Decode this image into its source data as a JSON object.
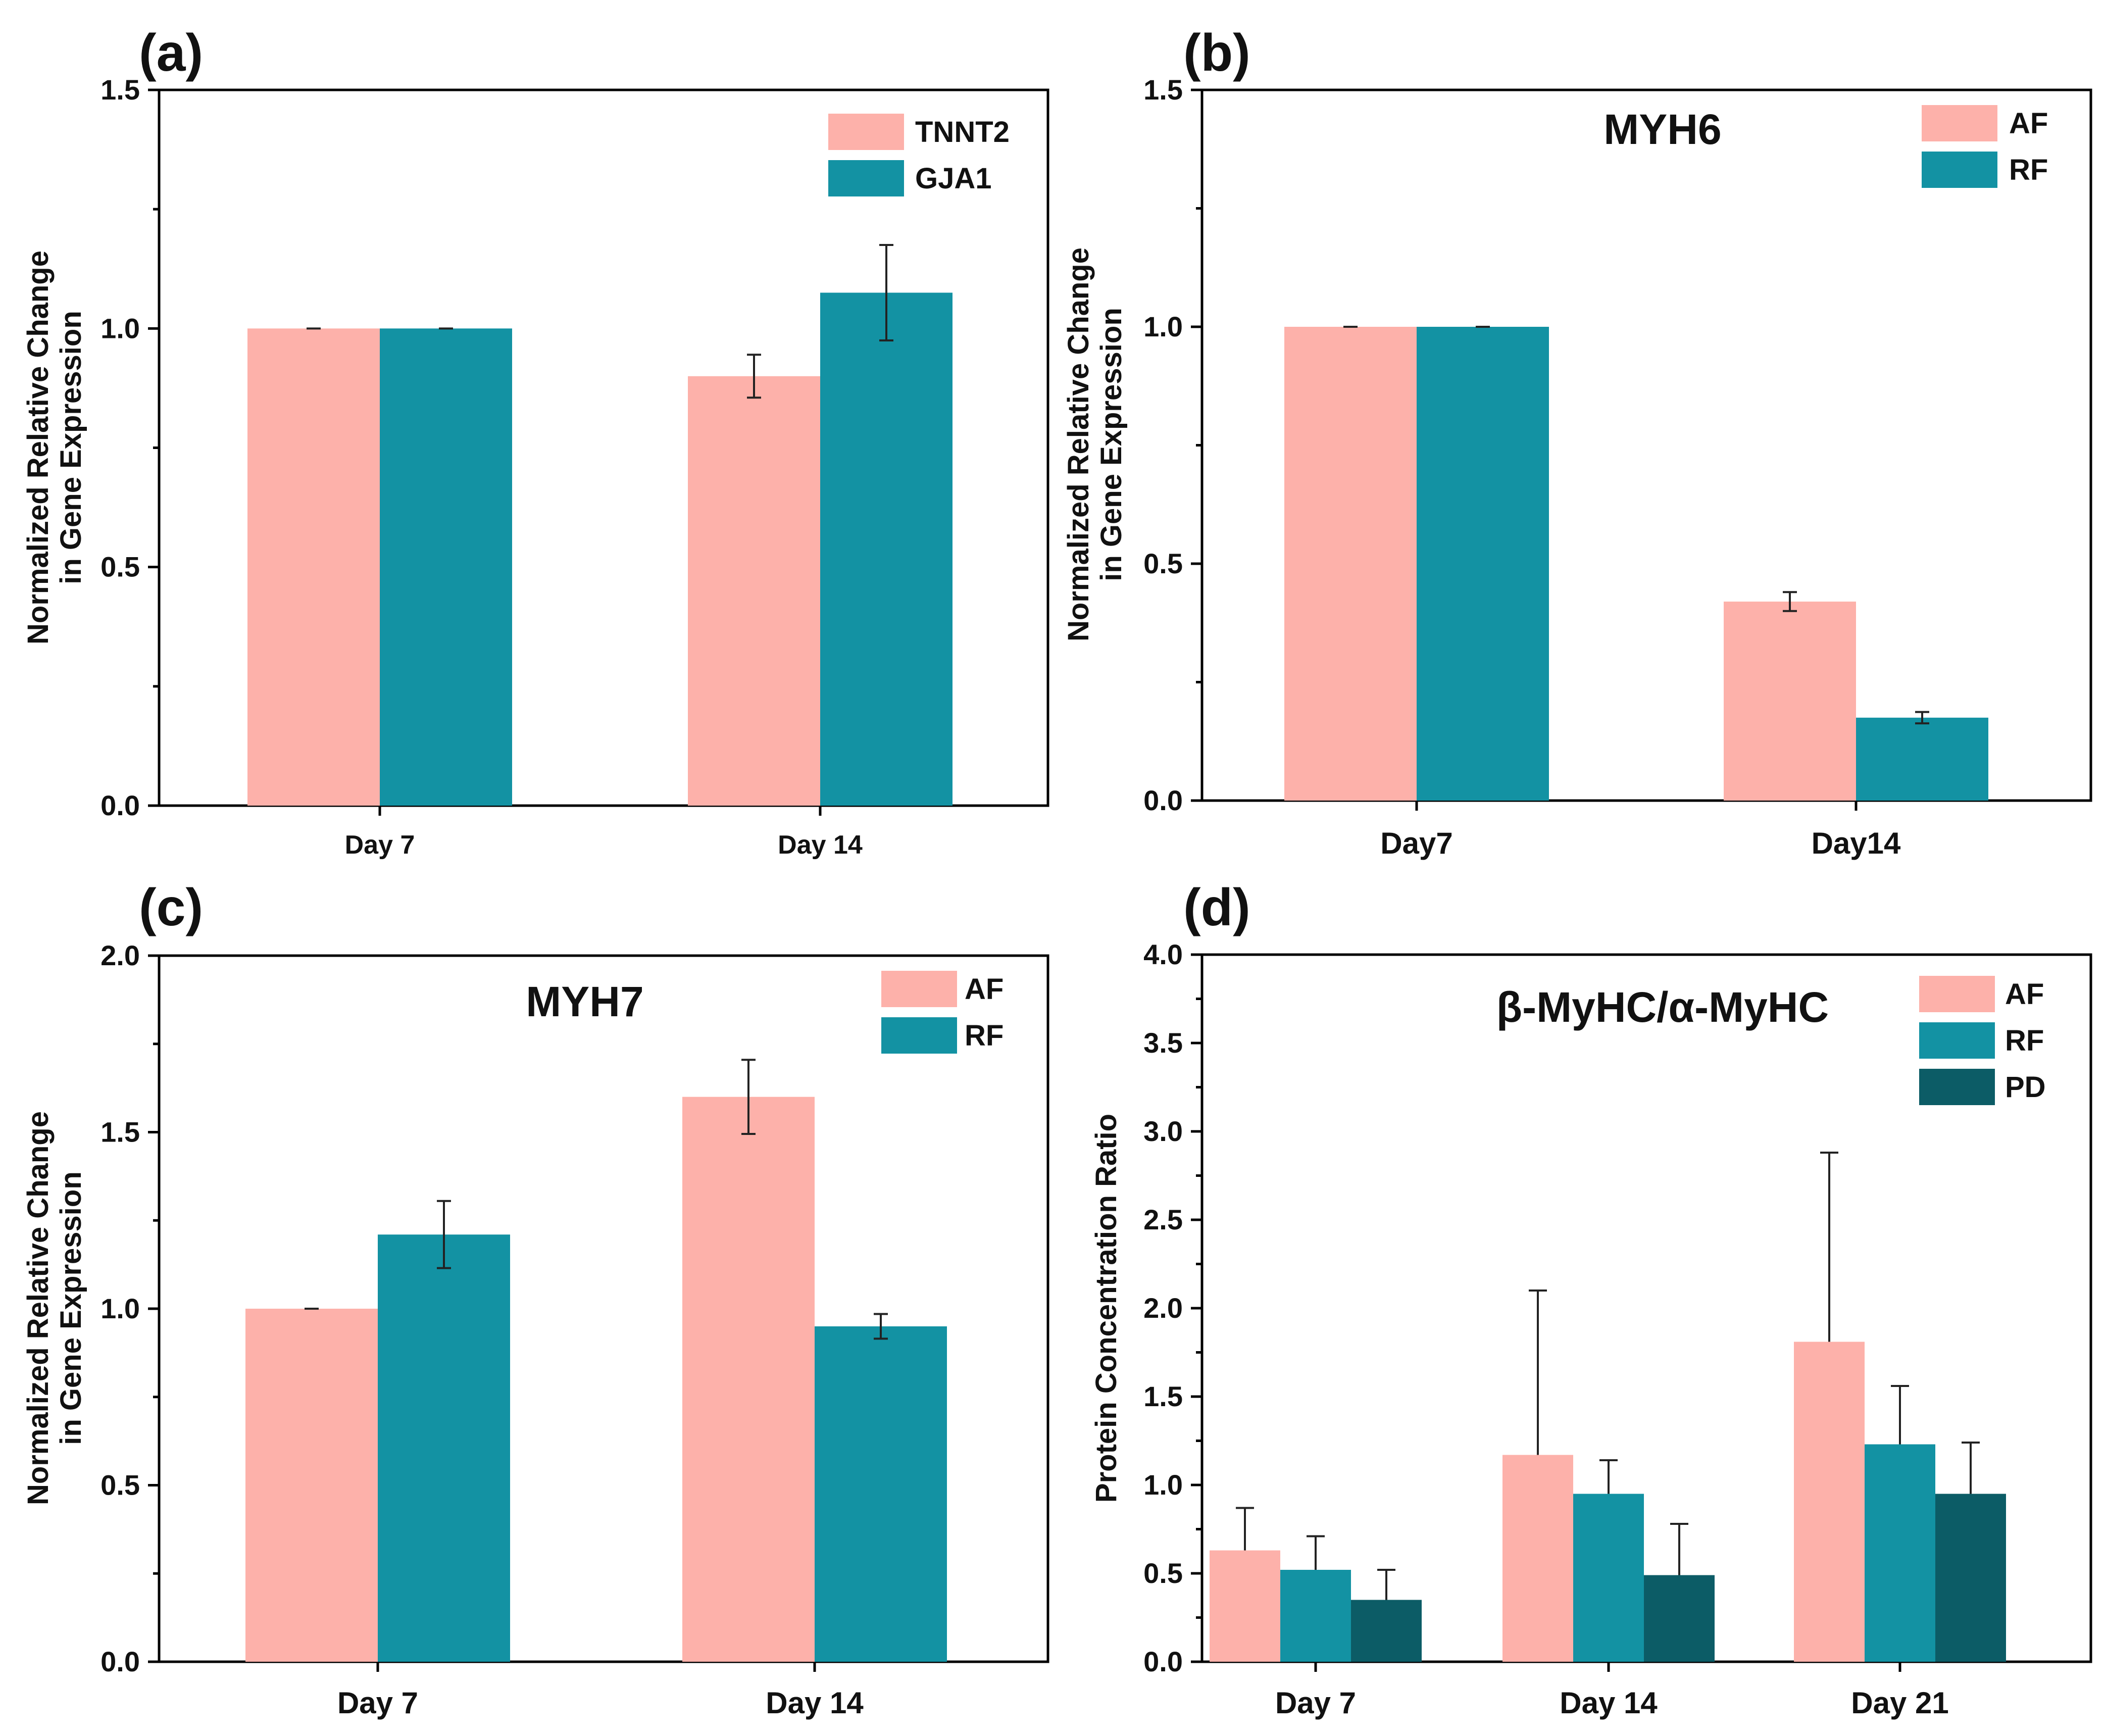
{
  "colors": {
    "AF": "#fdb1aa",
    "RF": "#1392a3",
    "PD": "#0c5c66",
    "TNNT2": "#fdb1aa",
    "GJA1": "#1392a3"
  },
  "chart_data": [
    {
      "panel": "(a)",
      "type": "bar",
      "title": "",
      "ylabel": [
        "Normalized Relative Change",
        "in Gene Expression"
      ],
      "xlabel": "",
      "categories": [
        "Day 7",
        "Day 14"
      ],
      "ylim": [
        0,
        1.5
      ],
      "yticks": [
        "0.0",
        "0.5",
        "1.0",
        "1.5"
      ],
      "legend_position": "top-right",
      "series": [
        {
          "name": "TNNT2",
          "values": [
            1.0,
            0.9
          ],
          "errors": [
            0.0,
            0.045
          ]
        },
        {
          "name": "GJA1",
          "values": [
            1.0,
            1.075
          ],
          "errors": [
            0.0,
            0.1
          ]
        }
      ]
    },
    {
      "panel": "(b)",
      "type": "bar",
      "title": "MYH6",
      "ylabel": [
        "Normalized Relative Change",
        "in Gene Expression"
      ],
      "xlabel": "",
      "categories": [
        "Day7",
        "Day14"
      ],
      "ylim": [
        0,
        1.5
      ],
      "yticks": [
        "0.0",
        "0.5",
        "1.0",
        "1.5"
      ],
      "legend_position": "top-right",
      "series": [
        {
          "name": "AF",
          "values": [
            1.0,
            0.42
          ],
          "errors": [
            0.0,
            0.02
          ]
        },
        {
          "name": "RF",
          "values": [
            1.0,
            0.175
          ],
          "errors": [
            0.0,
            0.012
          ]
        }
      ]
    },
    {
      "panel": "(c)",
      "type": "bar",
      "title": "MYH7",
      "ylabel": [
        "Normalized Relative Change",
        "in Gene Expression"
      ],
      "xlabel": "",
      "categories": [
        "Day 7",
        "Day 14"
      ],
      "ylim": [
        0,
        2.0
      ],
      "yticks": [
        "0.0",
        "0.5",
        "1.0",
        "1.5",
        "2.0"
      ],
      "legend_position": "top-right",
      "series": [
        {
          "name": "AF",
          "values": [
            1.0,
            1.6
          ],
          "errors": [
            0.0,
            0.105
          ]
        },
        {
          "name": "RF",
          "values": [
            1.21,
            0.95
          ],
          "errors": [
            0.095,
            0.035
          ]
        }
      ]
    },
    {
      "panel": "(d)",
      "type": "bar",
      "title": "β-MyHC/α-MyHC",
      "ylabel": [
        "Protein Concentration Ratio"
      ],
      "xlabel": "",
      "categories": [
        "Day 7",
        "Day 14",
        "Day 21"
      ],
      "ylim": [
        0,
        4.0
      ],
      "yticks": [
        "0.0",
        "0.5",
        "1.0",
        "1.5",
        "2.0",
        "2.5",
        "3.0",
        "3.5",
        "4.0"
      ],
      "legend_position": "top-right",
      "series": [
        {
          "name": "AF",
          "values": [
            0.63,
            1.17,
            1.81
          ],
          "errors": [
            0.24,
            0.93,
            1.07
          ]
        },
        {
          "name": "RF",
          "values": [
            0.52,
            0.95,
            1.23
          ],
          "errors": [
            0.19,
            0.19,
            0.33
          ]
        },
        {
          "name": "PD",
          "values": [
            0.35,
            0.49,
            0.95
          ],
          "errors": [
            0.17,
            0.29,
            0.29
          ]
        }
      ]
    }
  ]
}
